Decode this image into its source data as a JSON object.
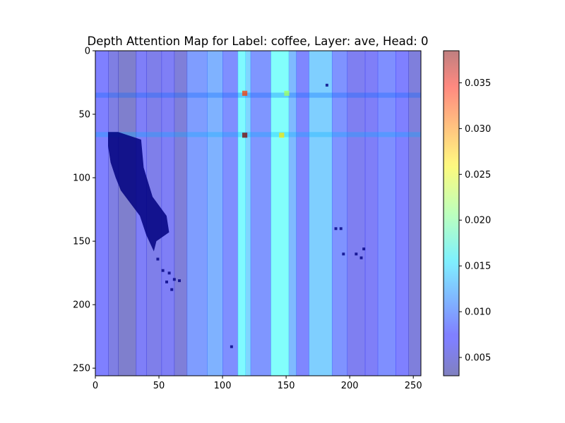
{
  "chart_data": {
    "type": "heatmap",
    "title": "Depth Attention Map for Label: coffee, Layer: ave, Head: 0",
    "xlabel": "",
    "ylabel": "",
    "colormap": "jet",
    "overlay_alpha": 0.5,
    "image_size": [
      256,
      256
    ],
    "xlim": [
      0,
      256
    ],
    "ylim": [
      256,
      0
    ],
    "x_ticks": [
      0,
      50,
      100,
      150,
      200,
      250
    ],
    "x_tick_labels": [
      "0",
      "50",
      "100",
      "150",
      "200",
      "250"
    ],
    "y_ticks": [
      0,
      50,
      100,
      150,
      200,
      250
    ],
    "y_tick_labels": [
      "0",
      "50",
      "100",
      "150",
      "200",
      "250"
    ],
    "colorbar": {
      "range": [
        0.003,
        0.0385
      ],
      "ticks": [
        0.005,
        0.01,
        0.015,
        0.02,
        0.025,
        0.03,
        0.035
      ],
      "tick_labels": [
        "0.005",
        "0.010",
        "0.015",
        "0.020",
        "0.025",
        "0.030",
        "0.035"
      ]
    },
    "column_profile": [
      {
        "x0": 0,
        "x1": 10,
        "value": 0.0075
      },
      {
        "x0": 10,
        "x1": 18,
        "value": 0.0055
      },
      {
        "x0": 18,
        "x1": 32,
        "value": 0.004
      },
      {
        "x0": 32,
        "x1": 40,
        "value": 0.007
      },
      {
        "x0": 40,
        "x1": 52,
        "value": 0.006
      },
      {
        "x0": 52,
        "x1": 62,
        "value": 0.0068
      },
      {
        "x0": 62,
        "x1": 72,
        "value": 0.0048
      },
      {
        "x0": 72,
        "x1": 88,
        "value": 0.0095
      },
      {
        "x0": 88,
        "x1": 100,
        "value": 0.011
      },
      {
        "x0": 100,
        "x1": 112,
        "value": 0.0085
      },
      {
        "x0": 112,
        "x1": 118,
        "value": 0.016
      },
      {
        "x0": 118,
        "x1": 122,
        "value": 0.0135
      },
      {
        "x0": 122,
        "x1": 138,
        "value": 0.009
      },
      {
        "x0": 138,
        "x1": 152,
        "value": 0.0165
      },
      {
        "x0": 152,
        "x1": 158,
        "value": 0.0115
      },
      {
        "x0": 158,
        "x1": 168,
        "value": 0.008
      },
      {
        "x0": 168,
        "x1": 186,
        "value": 0.013
      },
      {
        "x0": 186,
        "x1": 198,
        "value": 0.0088
      },
      {
        "x0": 198,
        "x1": 212,
        "value": 0.0065
      },
      {
        "x0": 212,
        "x1": 222,
        "value": 0.007
      },
      {
        "x0": 222,
        "x1": 236,
        "value": 0.0085
      },
      {
        "x0": 236,
        "x1": 246,
        "value": 0.0075
      },
      {
        "x0": 246,
        "x1": 256,
        "value": 0.005
      }
    ],
    "hot_rows": [
      {
        "y0": 33,
        "y1": 37,
        "value": 0.002
      },
      {
        "y0": 64,
        "y1": 68,
        "value": 0.0045
      }
    ],
    "hot_spots": [
      {
        "x": 117,
        "y": 33,
        "value": 0.032
      },
      {
        "x": 117,
        "y": 66,
        "value": 0.0385
      },
      {
        "x": 146,
        "y": 66,
        "value": 0.026
      },
      {
        "x": 150,
        "y": 33,
        "value": 0.022
      }
    ],
    "dark_region": {
      "value": 0.0005,
      "points": [
        [
          10,
          64
        ],
        [
          18,
          64
        ],
        [
          36,
          70
        ],
        [
          38,
          92
        ],
        [
          45,
          115
        ],
        [
          56,
          130
        ],
        [
          58,
          143
        ],
        [
          48,
          150
        ],
        [
          46,
          158
        ],
        [
          40,
          145
        ],
        [
          35,
          130
        ],
        [
          20,
          110
        ],
        [
          16,
          100
        ],
        [
          12,
          88
        ],
        [
          10,
          75
        ]
      ]
    },
    "dark_specks": [
      {
        "x": 49,
        "y": 164
      },
      {
        "x": 53,
        "y": 173
      },
      {
        "x": 58,
        "y": 175
      },
      {
        "x": 56,
        "y": 182
      },
      {
        "x": 62,
        "y": 180
      },
      {
        "x": 66,
        "y": 181
      },
      {
        "x": 60,
        "y": 188
      },
      {
        "x": 195,
        "y": 160
      },
      {
        "x": 205,
        "y": 160
      },
      {
        "x": 209,
        "y": 163
      },
      {
        "x": 211,
        "y": 156
      },
      {
        "x": 189,
        "y": 140
      },
      {
        "x": 193,
        "y": 140
      },
      {
        "x": 182,
        "y": 27
      },
      {
        "x": 107,
        "y": 233
      }
    ]
  }
}
